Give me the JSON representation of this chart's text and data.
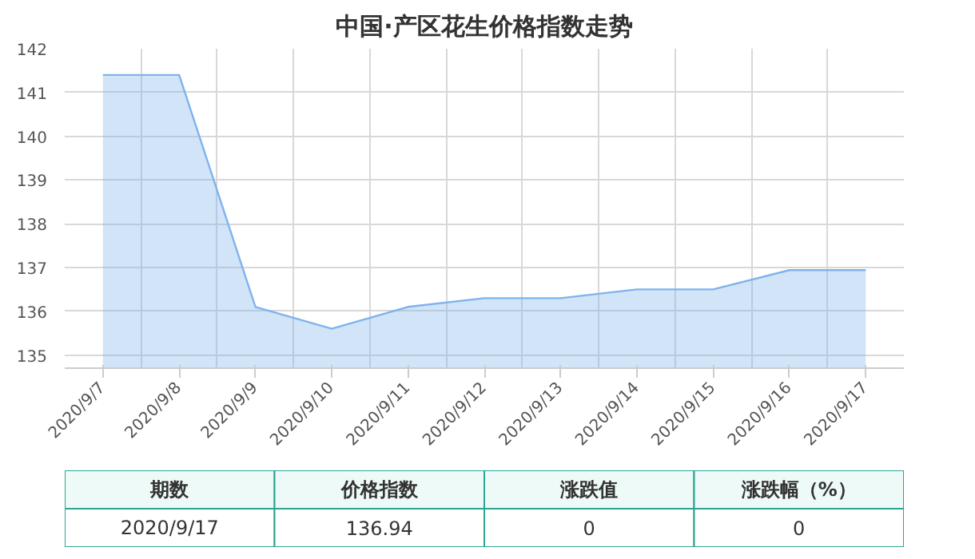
{
  "chart_data": [
    {
      "type": "area",
      "title": "中国·产区花生价格指数走势",
      "categories": [
        "2020/9/7",
        "2020/9/8",
        "2020/9/9",
        "2020/9/10",
        "2020/9/11",
        "2020/9/12",
        "2020/9/13",
        "2020/9/14",
        "2020/9/15",
        "2020/9/16",
        "2020/9/17"
      ],
      "series": [
        {
          "color": "#7fb3ec",
          "values": [
            141.4,
            141.4,
            136.1,
            135.6,
            136.1,
            136.3,
            136.3,
            136.5,
            136.5,
            136.94,
            136.94
          ]
        }
      ],
      "ylim": [
        134.7,
        142
      ],
      "yticks": [
        135,
        136,
        137,
        138,
        139,
        140,
        141,
        142
      ],
      "grid": true
    },
    {
      "type": "other",
      "categories": [
        "期数",
        "价格指数",
        "涨跌值",
        "涨跌幅（%）"
      ],
      "annotations": [
        "2020/9/17",
        "136.94",
        "0",
        "0"
      ]
    }
  ]
}
